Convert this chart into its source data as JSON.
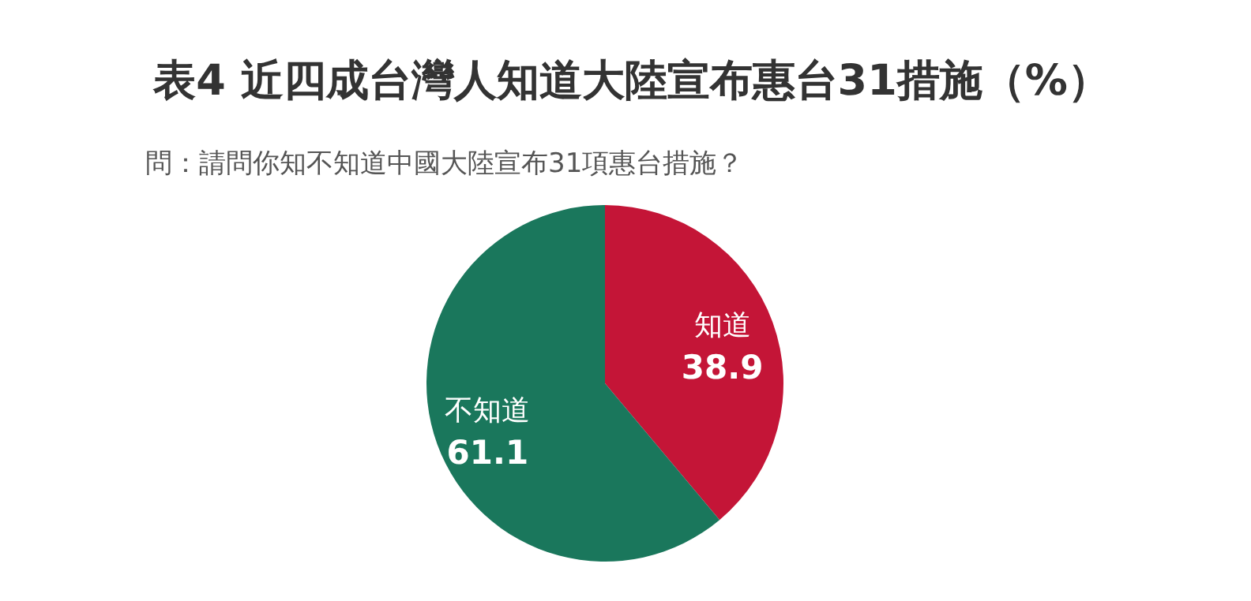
{
  "chart_data": {
    "type": "pie",
    "title": "表4 近四成台灣人知道大陸宣布惠台31措施（%）",
    "subtitle": "問：請問你知不知道中國大陸宣布31項惠台措施？",
    "categories": [
      "知道",
      "不知道"
    ],
    "values": [
      38.9,
      61.1
    ],
    "colors": [
      "#c41537",
      "#1a775c"
    ],
    "data_labels": true,
    "legend": false
  }
}
